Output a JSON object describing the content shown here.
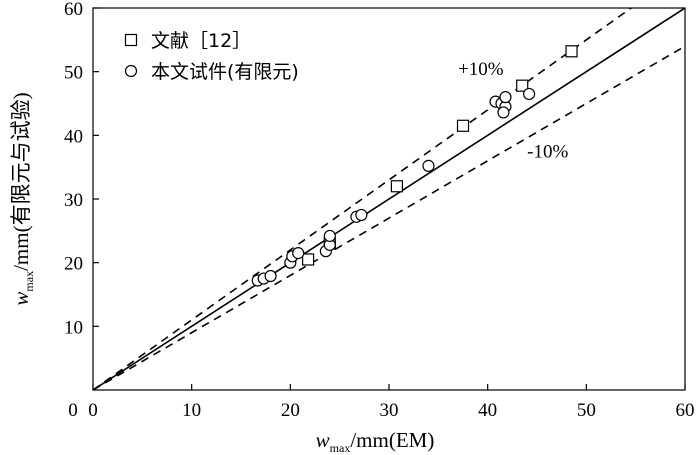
{
  "chart_data": {
    "type": "scatter",
    "x_label": {
      "var": "w",
      "sub": "max",
      "unit": "/mm(EM)"
    },
    "y_label": {
      "var": "w",
      "sub": "max",
      "unit": "/mm(有限元与试验)"
    },
    "xlim": [
      0,
      60
    ],
    "ylim": [
      0,
      60
    ],
    "x_ticks": [
      "0",
      "10",
      "20",
      "30",
      "40",
      "50",
      "60"
    ],
    "y_ticks": [
      "10",
      "20",
      "30",
      "40",
      "50",
      "60"
    ],
    "grid": false,
    "legend_position": "top-left",
    "series": [
      {
        "name": "文献［12］",
        "marker": "square",
        "points": [
          {
            "x": 21.8,
            "y": 20.5
          },
          {
            "x": 24.0,
            "y": 23.0
          },
          {
            "x": 30.8,
            "y": 32.0
          },
          {
            "x": 37.5,
            "y": 41.5
          },
          {
            "x": 43.5,
            "y": 47.8
          },
          {
            "x": 48.5,
            "y": 53.2
          }
        ]
      },
      {
        "name": "本文试件(有限元)",
        "marker": "circle",
        "points": [
          {
            "x": 16.7,
            "y": 17.2
          },
          {
            "x": 17.3,
            "y": 17.5
          },
          {
            "x": 18.0,
            "y": 17.9
          },
          {
            "x": 20.0,
            "y": 20.0
          },
          {
            "x": 20.2,
            "y": 21.0
          },
          {
            "x": 20.8,
            "y": 21.5
          },
          {
            "x": 23.6,
            "y": 21.8
          },
          {
            "x": 24.0,
            "y": 22.8
          },
          {
            "x": 24.0,
            "y": 24.2
          },
          {
            "x": 26.7,
            "y": 27.2
          },
          {
            "x": 27.2,
            "y": 27.5
          },
          {
            "x": 34.0,
            "y": 35.2
          },
          {
            "x": 40.8,
            "y": 45.3
          },
          {
            "x": 41.4,
            "y": 45.0
          },
          {
            "x": 41.8,
            "y": 44.5
          },
          {
            "x": 41.8,
            "y": 46.0
          },
          {
            "x": 41.6,
            "y": 43.6
          },
          {
            "x": 44.2,
            "y": 46.5
          }
        ]
      }
    ],
    "reference_lines": [
      {
        "style": "solid",
        "slope": 1.0
      },
      {
        "style": "dashed",
        "slope": 1.1
      },
      {
        "style": "dashed",
        "slope": 0.9
      }
    ],
    "annotations": [
      {
        "text": "+10%",
        "x": 37,
        "y": 49.5
      },
      {
        "text": "-10%",
        "x": 44,
        "y": 36.5
      }
    ]
  }
}
